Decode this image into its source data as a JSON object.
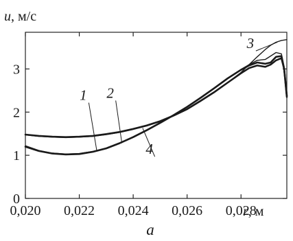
{
  "chart_data": {
    "type": "line",
    "title": "",
    "xlabel_var": "r",
    "xlabel_unit": ", м",
    "ylabel_var": "u",
    "ylabel_unit": ", м/с",
    "caption": "a",
    "xlim": [
      0.02,
      0.0297
    ],
    "ylim": [
      0,
      3.85
    ],
    "xticks": [
      {
        "value": 0.02,
        "label": "0,020"
      },
      {
        "value": 0.022,
        "label": "0,022"
      },
      {
        "value": 0.024,
        "label": "0,024"
      },
      {
        "value": 0.026,
        "label": "0,026"
      },
      {
        "value": 0.028,
        "label": "0,028"
      }
    ],
    "yticks": [
      {
        "value": 0,
        "label": "0"
      },
      {
        "value": 1,
        "label": "1"
      },
      {
        "value": 2,
        "label": "2"
      },
      {
        "value": 3,
        "label": "3"
      }
    ],
    "grid": false,
    "series": [
      {
        "name": "1",
        "x": [
          0.02,
          0.0205,
          0.021,
          0.0215,
          0.022,
          0.0225,
          0.023,
          0.0235,
          0.024,
          0.0245,
          0.025,
          0.0255,
          0.026,
          0.0265,
          0.027,
          0.0275,
          0.028,
          0.0283,
          0.0286,
          0.0289,
          0.0291,
          0.0293,
          0.0295,
          0.0296,
          0.0297
        ],
        "y": [
          1.2,
          1.1,
          1.04,
          1.02,
          1.03,
          1.08,
          1.16,
          1.28,
          1.42,
          1.58,
          1.75,
          1.93,
          2.12,
          2.33,
          2.55,
          2.78,
          2.98,
          3.08,
          3.15,
          3.12,
          3.15,
          3.28,
          3.3,
          3.0,
          2.38
        ]
      },
      {
        "name": "2",
        "x": [
          0.02,
          0.0205,
          0.021,
          0.0215,
          0.022,
          0.0225,
          0.023,
          0.0235,
          0.024,
          0.0245,
          0.025,
          0.0255,
          0.026,
          0.0265,
          0.027,
          0.0275,
          0.028,
          0.0283,
          0.0286,
          0.0289,
          0.0291,
          0.0293,
          0.0295,
          0.0296,
          0.0297
        ],
        "y": [
          1.22,
          1.11,
          1.05,
          1.03,
          1.04,
          1.09,
          1.17,
          1.29,
          1.43,
          1.59,
          1.76,
          1.94,
          2.13,
          2.34,
          2.56,
          2.79,
          2.99,
          3.1,
          3.2,
          3.22,
          3.3,
          3.38,
          3.35,
          3.05,
          2.4
        ]
      },
      {
        "name": "3",
        "x": [
          0.02,
          0.0205,
          0.021,
          0.0215,
          0.022,
          0.0225,
          0.023,
          0.0235,
          0.024,
          0.0245,
          0.025,
          0.0255,
          0.026,
          0.0265,
          0.027,
          0.0275,
          0.028,
          0.0283,
          0.0286,
          0.0289,
          0.0291,
          0.0293,
          0.0295,
          0.0296,
          0.0297
        ],
        "y": [
          1.47,
          1.44,
          1.42,
          1.41,
          1.42,
          1.44,
          1.48,
          1.53,
          1.6,
          1.68,
          1.78,
          1.91,
          2.06,
          2.25,
          2.45,
          2.68,
          2.92,
          3.1,
          3.28,
          3.45,
          3.55,
          3.62,
          3.66,
          3.67,
          3.68
        ]
      },
      {
        "name": "4",
        "x": [
          0.02,
          0.0205,
          0.021,
          0.0215,
          0.022,
          0.0225,
          0.023,
          0.0235,
          0.024,
          0.0245,
          0.025,
          0.0255,
          0.026,
          0.0265,
          0.027,
          0.0275,
          0.028,
          0.0283,
          0.0286,
          0.0289,
          0.0291,
          0.0293,
          0.0295,
          0.0296,
          0.0297
        ],
        "y": [
          1.48,
          1.45,
          1.43,
          1.42,
          1.43,
          1.45,
          1.49,
          1.54,
          1.61,
          1.69,
          1.79,
          1.92,
          2.07,
          2.26,
          2.46,
          2.68,
          2.9,
          3.02,
          3.08,
          3.05,
          3.1,
          3.2,
          3.25,
          3.0,
          2.35
        ]
      }
    ],
    "annotations": [
      {
        "label": "1",
        "series": "1",
        "point_x": 0.02265,
        "point_y": 1.1,
        "text_x": 0.02225,
        "text_y": 2.25
      },
      {
        "label": "2",
        "series": "2",
        "point_x": 0.02358,
        "point_y": 1.28,
        "text_x": 0.02325,
        "text_y": 2.3
      },
      {
        "label": "3",
        "series": "3",
        "point_x": 0.02935,
        "point_y": 3.62,
        "text_x": 0.02845,
        "text_y": 3.45
      },
      {
        "label": "4",
        "series": "4",
        "point_x": 0.02435,
        "point_y": 1.63,
        "text_x": 0.0247,
        "text_y": 1.0
      }
    ]
  }
}
